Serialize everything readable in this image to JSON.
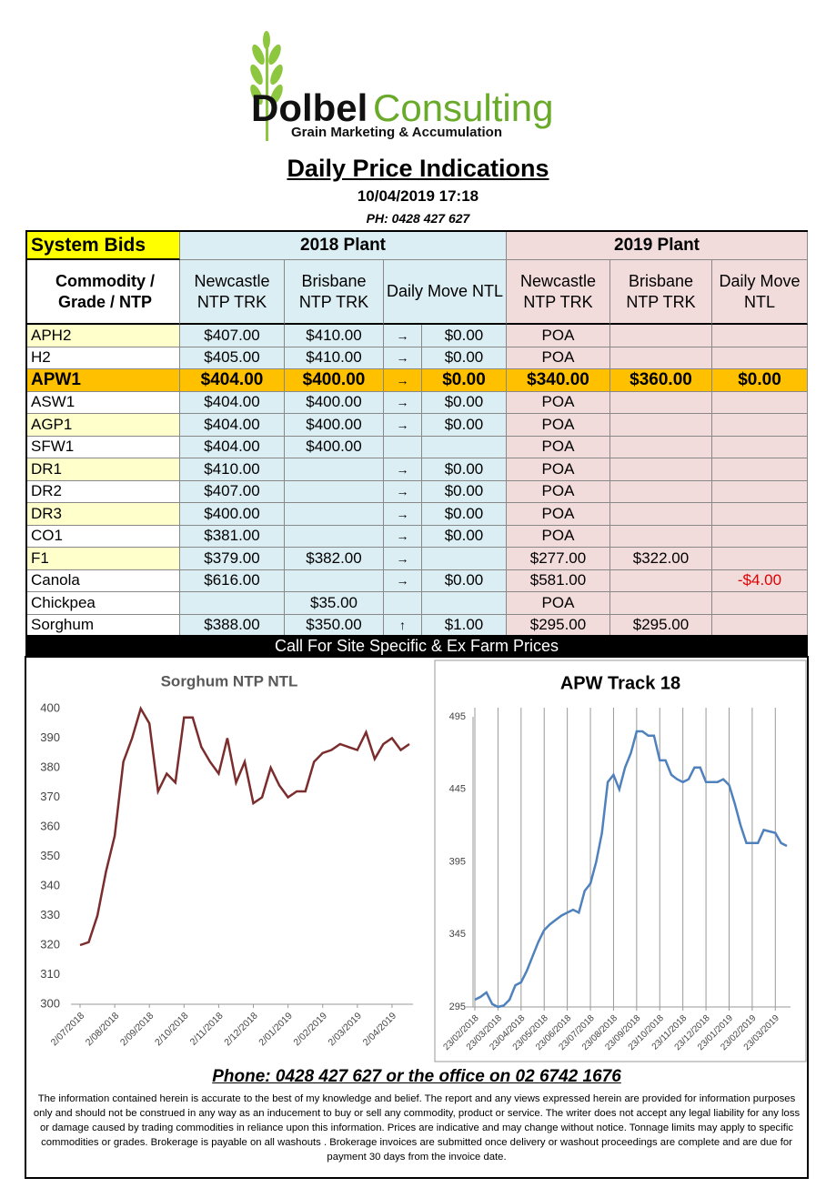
{
  "header": {
    "logo_a": "Dolbel",
    "logo_b": "Consulting",
    "tagline": "Grain Marketing & Accumulation",
    "title": "Daily Price Indications",
    "datetime": "10/04/2019 17:18",
    "phone": "PH: 0428 427 627"
  },
  "table": {
    "groups": [
      "System Bids",
      "2018 Plant",
      "2019 Plant"
    ],
    "columns": [
      "Commodity / Grade / NTP",
      "Newcastle NTP TRK",
      "Brisbane NTP TRK",
      "Daily  Move NTL",
      "Newcastle NTP TRK",
      "Brisbane NTP TRK",
      "Daily Move NTL"
    ],
    "rows": [
      {
        "cells": [
          "APH2",
          "$407.00",
          "$410.00",
          "→",
          "$0.00",
          "POA",
          null,
          null
        ],
        "fill": "#ffffcc"
      },
      {
        "cells": [
          "H2",
          "$405.00",
          "$410.00",
          "→",
          "$0.00",
          "POA",
          null,
          null
        ]
      },
      {
        "cells": [
          "APW1",
          "$404.00",
          "$400.00",
          "→",
          "$0.00",
          "$340.00",
          "$360.00",
          "$0.00"
        ],
        "fill": "#ffc000",
        "highlight": true
      },
      {
        "cells": [
          "ASW1",
          "$404.00",
          "$400.00",
          "→",
          "$0.00",
          "POA",
          null,
          null
        ]
      },
      {
        "cells": [
          "AGP1",
          "$404.00",
          "$400.00",
          "→",
          "$0.00",
          "POA",
          null,
          null
        ],
        "fill": "#ffffcc"
      },
      {
        "cells": [
          "SFW1",
          "$404.00",
          "$400.00",
          null,
          null,
          "POA",
          null,
          null
        ]
      },
      {
        "cells": [
          "DR1",
          "$410.00",
          null,
          "→",
          "$0.00",
          "POA",
          null,
          null
        ],
        "fill": "#ffffcc"
      },
      {
        "cells": [
          "DR2",
          "$407.00",
          null,
          "→",
          "$0.00",
          "POA",
          null,
          null
        ]
      },
      {
        "cells": [
          "DR3",
          "$400.00",
          null,
          "→",
          "$0.00",
          "POA",
          null,
          null
        ],
        "fill": "#ffffcc"
      },
      {
        "cells": [
          "CO1",
          "$381.00",
          null,
          "→",
          "$0.00",
          "POA",
          null,
          null
        ]
      },
      {
        "cells": [
          "F1",
          "$379.00",
          "$382.00",
          "→",
          null,
          "$277.00",
          "$322.00",
          null
        ],
        "fill": "#ffffcc"
      },
      {
        "cells": [
          "Canola",
          "$616.00",
          null,
          "→",
          "$0.00",
          "$581.00",
          null,
          "-$4.00"
        ]
      },
      {
        "cells": [
          "Chickpea",
          null,
          "$35.00",
          null,
          null,
          "POA",
          null,
          null
        ]
      },
      {
        "cells": [
          "Sorghum",
          "$388.00",
          "$350.00",
          "↑",
          "$1.00",
          "$295.00",
          "$295.00",
          null
        ]
      }
    ]
  },
  "banner": "Call For Site Specific & Ex Farm Prices",
  "chart_data": [
    {
      "type": "line",
      "title": "Sorghum NTP NTL",
      "color": "#7b2c2c",
      "grid": false,
      "categories": [
        "2/07/2018",
        null,
        null,
        null,
        "2/08/2018",
        null,
        null,
        null,
        "2/09/2018",
        null,
        null,
        null,
        "2/10/2018",
        null,
        null,
        null,
        "2/11/2018",
        null,
        null,
        null,
        "2/12/2018",
        null,
        null,
        null,
        "2/01/2019",
        null,
        null,
        null,
        "2/02/2019",
        null,
        null,
        null,
        "2/03/2019",
        null,
        null,
        null,
        "2/04/2019",
        null,
        null
      ],
      "values": [
        320,
        321,
        330,
        345,
        357,
        382,
        390,
        400,
        395,
        372,
        378,
        375,
        397,
        397,
        387,
        382,
        378,
        390,
        375,
        382,
        368,
        370,
        380,
        374,
        370,
        372,
        372,
        382,
        385,
        386,
        388,
        387,
        386,
        392,
        383,
        388,
        390,
        386,
        388
      ],
      "ylim": [
        300,
        400
      ],
      "yticks": [
        300,
        310,
        320,
        330,
        340,
        350,
        360,
        370,
        380,
        390,
        400
      ]
    },
    {
      "type": "line",
      "title": "APW Track 18",
      "color": "#4f81bd",
      "grid": true,
      "categories": [
        "23/02/2018",
        null,
        null,
        null,
        "23/03/2018",
        null,
        null,
        null,
        "23/04/2018",
        null,
        null,
        null,
        "23/05/2018",
        null,
        null,
        null,
        "23/06/2018",
        null,
        null,
        null,
        "23/07/2018",
        null,
        null,
        null,
        "23/08/2018",
        null,
        null,
        null,
        "23/09/2018",
        null,
        null,
        null,
        "23/10/2018",
        null,
        null,
        null,
        "23/11/2018",
        null,
        null,
        null,
        "23/12/2018",
        null,
        null,
        null,
        "23/01/2019",
        null,
        null,
        null,
        "23/02/2019",
        null,
        null,
        null,
        "23/03/2019",
        null,
        null
      ],
      "values": [
        300,
        302,
        305,
        297,
        295,
        296,
        300,
        310,
        312,
        320,
        330,
        340,
        348,
        352,
        355,
        358,
        360,
        362,
        360,
        375,
        380,
        395,
        415,
        450,
        455,
        445,
        460,
        470,
        485,
        485,
        482,
        482,
        465,
        465,
        455,
        452,
        450,
        452,
        460,
        460,
        450,
        450,
        450,
        452,
        448,
        435,
        420,
        408,
        408,
        408,
        417,
        416,
        415,
        408,
        406
      ],
      "ylim": [
        295,
        495
      ],
      "yticks": [
        295,
        345,
        395,
        445,
        495
      ]
    }
  ],
  "footer": {
    "phone": "Phone: 0428 427 627 or the office on 02 6742 1676",
    "disclaimer": "The information contained herein is accurate to the best of my knowledge and belief.  The report and any views expressed herein are provided for information purposes only and should not be construed in any way as an inducement to buy or sell any commodity, product or service. The writer does not accept any legal liability for any loss or damage caused by trading commodities in reliance upon this information. Prices are indicative and may change without notice. Tonnage limits may apply to specific commodities or grades.  Brokerage is payable on all washouts . Brokerage invoices are submitted once delivery or washout proceedings are complete and are due for payment 30 days from the invoice date."
  }
}
